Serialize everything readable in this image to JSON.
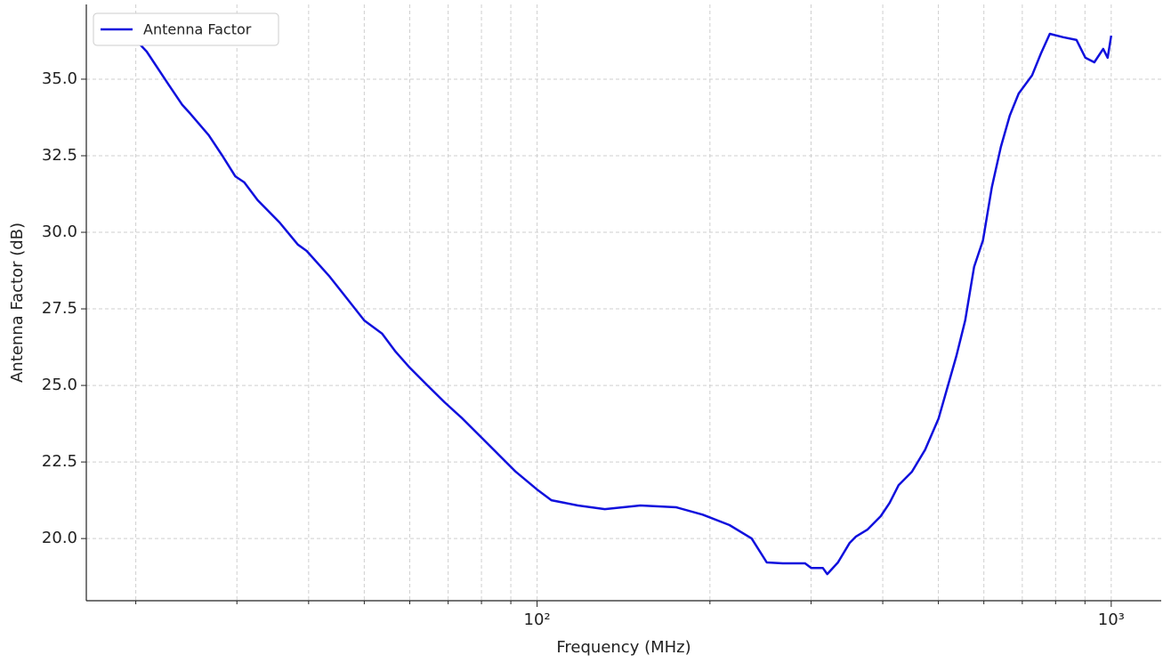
{
  "chart_data": {
    "type": "line",
    "x_label": "Frequency (MHz)",
    "y_label": "Antenna Factor (dB)",
    "x_scale": "log",
    "grid": true,
    "legend": "upper left",
    "x": [
      20,
      20.9,
      22.8,
      24.1,
      24.9,
      26.8,
      28.3,
      29.8,
      30.9,
      32.6,
      35.6,
      38.3,
      39.7,
      43.4,
      46.6,
      50.0,
      53.7,
      56.7,
      59.8,
      64.2,
      69.0,
      74.1,
      79.6,
      85.5,
      91.8,
      100,
      105.9,
      117.8,
      131.2,
      151.3,
      174.6,
      194.3,
      216.3,
      236.4,
      251.2,
      267.9,
      292.9,
      300.3,
      314.5,
      320.2,
      334.2,
      350.1,
      358.9,
      376.0,
      396.8,
      411.1,
      426.1,
      449.5,
      474.2,
      500.4,
      518.5,
      537.3,
      556.8,
      577.0,
      597.9,
      619.7,
      642.3,
      665.6,
      690.0,
      727.8,
      754.3,
      781.6,
      824.7,
      870.0,
      901.6,
      934.3,
      968.3,
      985.8,
      1000
    ],
    "series": [
      {
        "name": "Antenna Factor",
        "color": "#1010dd",
        "values": [
          36.28,
          35.9,
          34.83,
          34.16,
          33.87,
          33.17,
          32.5,
          31.83,
          31.63,
          31.05,
          30.32,
          29.6,
          29.39,
          28.58,
          27.85,
          27.12,
          26.69,
          26.1,
          25.61,
          25.03,
          24.45,
          23.92,
          23.34,
          22.76,
          22.18,
          21.6,
          21.25,
          21.08,
          20.96,
          21.08,
          21.02,
          20.78,
          20.44,
          20.0,
          19.22,
          19.19,
          19.19,
          19.04,
          19.04,
          18.84,
          19.22,
          19.85,
          20.06,
          20.29,
          20.73,
          21.16,
          21.74,
          22.18,
          22.9,
          23.92,
          24.94,
          25.96,
          27.12,
          28.87,
          29.74,
          31.48,
          32.79,
          33.81,
          34.53,
          35.12,
          35.84,
          36.48,
          36.37,
          36.28,
          35.7,
          35.55,
          35.99,
          35.7,
          36.42
        ]
      }
    ],
    "xlim": [
      16.4,
      1222
    ],
    "ylim": [
      17.97,
      37.44
    ],
    "xticks": [
      {
        "value": 100,
        "label": "10²"
      },
      {
        "value": 1000,
        "label": "10³"
      }
    ],
    "xminorticks": [
      20,
      30,
      40,
      50,
      60,
      70,
      80,
      90,
      200,
      300,
      400,
      500,
      600,
      700,
      800,
      900
    ],
    "yticks": [
      {
        "value": 20,
        "label": "20.0"
      },
      {
        "value": 22.5,
        "label": "22.5"
      },
      {
        "value": 25,
        "label": "25.0"
      },
      {
        "value": 27.5,
        "label": "27.5"
      },
      {
        "value": 30,
        "label": "30.0"
      },
      {
        "value": 32.5,
        "label": "32.5"
      },
      {
        "value": 35,
        "label": "35.0"
      }
    ]
  }
}
